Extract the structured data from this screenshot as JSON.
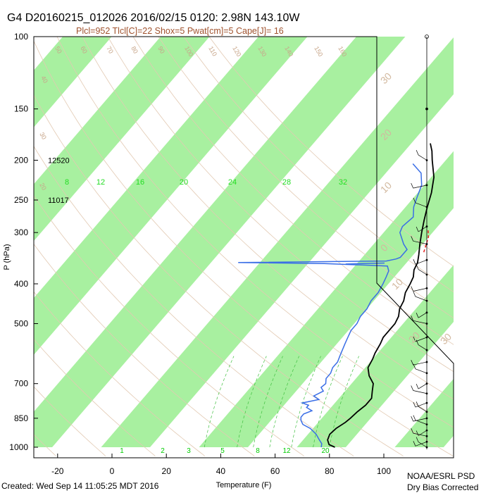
{
  "header": {
    "title": "G4 D20160215_012026 2016/02/15 0120:  2.98N 143.10W",
    "subtitle": "Plcl=952 Tlcl[C]=22 Shox=5 Pwat[cm]=5 Cape[J]= 16"
  },
  "footer": {
    "created": "Created: Wed Sep 14 11:05:25 MDT 2016",
    "credit_line1": "NOAA/ESRL PSD",
    "credit_line2": "Dry Bias Corrected"
  },
  "chart_data": {
    "type": "line",
    "chart_kind": "skew-T log-P sounding",
    "xlabel": "Temperature (F)",
    "ylabel": "P (hPa)",
    "x_ticks": [
      -20,
      0,
      20,
      40,
      60,
      80,
      100
    ],
    "x_tick_labels": [
      "-20",
      "0",
      "20",
      "40",
      "60",
      "80",
      "100"
    ],
    "y_scale": "log",
    "y_ticks": [
      100,
      150,
      200,
      250,
      300,
      400,
      500,
      700,
      850,
      1000
    ],
    "y_tick_labels": [
      "100",
      "150",
      "200",
      "250",
      "300",
      "400",
      "500",
      "700",
      "850",
      "1000"
    ],
    "xlim": [
      -29,
      128
    ],
    "ylim": [
      1050,
      100
    ],
    "height_labels": [
      {
        "pressure": 200,
        "text": "12520"
      },
      {
        "pressure": 250,
        "text": "11017"
      }
    ],
    "mixing_ratio_labels_top": [
      "8",
      "12",
      "16",
      "20",
      "24",
      "28",
      "32"
    ],
    "mixing_ratio_labels_bottom": [
      "1",
      "2",
      "3",
      "5",
      "8",
      "12",
      "20"
    ],
    "dry_adiabat_labels": [
      "20",
      "30",
      "40",
      "50",
      "60",
      "70",
      "80",
      "90",
      "100",
      "110",
      "120",
      "130",
      "140",
      "150",
      "160"
    ],
    "isotherm_labels": [
      "30",
      "20",
      "10",
      "0",
      "10",
      "20",
      "30"
    ],
    "series": [
      {
        "name": "Temperature",
        "color": "#000000",
        "points": [
          [
            1000,
            82
          ],
          [
            985,
            79
          ],
          [
            960,
            77
          ],
          [
            930,
            76
          ],
          [
            900,
            76.5
          ],
          [
            870,
            78
          ],
          [
            850,
            78.5
          ],
          [
            820,
            79
          ],
          [
            790,
            80
          ],
          [
            760,
            80
          ],
          [
            730,
            78
          ],
          [
            700,
            76
          ],
          [
            670,
            72
          ],
          [
            640,
            69
          ],
          [
            610,
            68
          ],
          [
            590,
            67
          ],
          [
            560,
            66
          ],
          [
            540,
            65
          ],
          [
            520,
            65
          ],
          [
            500,
            65
          ],
          [
            480,
            64
          ],
          [
            460,
            62
          ],
          [
            440,
            61
          ],
          [
            420,
            59
          ],
          [
            400,
            58
          ],
          [
            385,
            57
          ],
          [
            370,
            55
          ],
          [
            355,
            54
          ],
          [
            340,
            52
          ],
          [
            320,
            49
          ],
          [
            300,
            46
          ],
          [
            280,
            43
          ],
          [
            260,
            40
          ],
          [
            240,
            37
          ],
          [
            220,
            33
          ],
          [
            200,
            27
          ],
          [
            190,
            24
          ],
          [
            182,
            21
          ]
        ]
      },
      {
        "name": "Dewpoint",
        "color": "#3a6ee6",
        "points": [
          [
            1000,
            77
          ],
          [
            980,
            76
          ],
          [
            960,
            74
          ],
          [
            930,
            71
          ],
          [
            900,
            67
          ],
          [
            880,
            63
          ],
          [
            860,
            61
          ],
          [
            845,
            60
          ],
          [
            830,
            60
          ],
          [
            815,
            62
          ],
          [
            800,
            59
          ],
          [
            790,
            59
          ],
          [
            780,
            56
          ],
          [
            765,
            61
          ],
          [
            750,
            58
          ],
          [
            730,
            60
          ],
          [
            715,
            58
          ],
          [
            700,
            58.5
          ],
          [
            680,
            57
          ],
          [
            660,
            57
          ],
          [
            640,
            56
          ],
          [
            620,
            56
          ],
          [
            600,
            55
          ],
          [
            580,
            54
          ],
          [
            560,
            53
          ],
          [
            540,
            52
          ],
          [
            520,
            51
          ],
          [
            500,
            51
          ],
          [
            480,
            50
          ],
          [
            460,
            50
          ],
          [
            440,
            49
          ],
          [
            420,
            49
          ],
          [
            400,
            48
          ],
          [
            385,
            47
          ],
          [
            372,
            46
          ],
          [
            362,
            44
          ],
          [
            357,
            20
          ],
          [
            355,
            -12
          ],
          [
            352,
            42
          ],
          [
            348,
            45
          ],
          [
            345,
            46
          ],
          [
            330,
            46
          ],
          [
            320,
            43
          ],
          [
            300,
            38
          ],
          [
            290,
            37
          ],
          [
            275,
            38
          ],
          [
            260,
            35
          ],
          [
            245,
            33
          ],
          [
            230,
            31
          ],
          [
            215,
            27
          ],
          [
            204,
            21
          ]
        ]
      },
      {
        "name": "Parcel",
        "color": "#e62020",
        "style": "dashed",
        "points": [
          [
            335,
            53
          ],
          [
            308,
            50
          ],
          [
            293,
            47
          ]
        ]
      },
      {
        "name": "Moist segment",
        "color": "#3a6ee6",
        "points": [
          [
            358,
            28
          ],
          [
            357,
            34
          ],
          [
            356,
            42
          ]
        ]
      }
    ],
    "wind_profile": {
      "present": true,
      "label": "wind barbs"
    }
  }
}
